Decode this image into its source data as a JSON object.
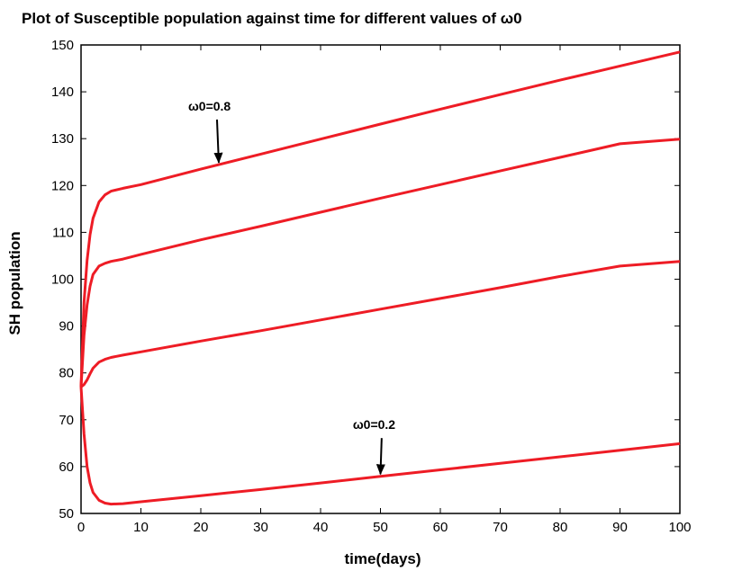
{
  "chart_data": {
    "type": "line",
    "title": "Plot of Susceptible population against time for different values of ω0",
    "xlabel": "time(days)",
    "ylabel": "SH population",
    "xlim": [
      0,
      100
    ],
    "ylim": [
      50,
      150
    ],
    "xticks": [
      0,
      10,
      20,
      30,
      40,
      50,
      60,
      70,
      80,
      90,
      100
    ],
    "yticks": [
      50,
      60,
      70,
      80,
      90,
      100,
      110,
      120,
      130,
      140,
      150
    ],
    "grid": false,
    "color": "#ee1c25",
    "series": [
      {
        "x": [
          0,
          0.5,
          1,
          1.5,
          2,
          3,
          4,
          5,
          7,
          10,
          20,
          30,
          40,
          50,
          60,
          70,
          80,
          90,
          100
        ],
        "values": [
          77,
          95,
          104,
          109.5,
          113,
          116.5,
          118,
          118.8,
          119.4,
          120.2,
          123.5,
          126.7,
          129.9,
          133.1,
          136.3,
          139.4,
          142.5,
          145.5,
          148.5
        ]
      },
      {
        "x": [
          0,
          0.5,
          1,
          1.5,
          2,
          3,
          4,
          5,
          7,
          10,
          20,
          30,
          40,
          50,
          60,
          70,
          80,
          90,
          100
        ],
        "values": [
          77,
          88,
          94.5,
          98.5,
          101,
          102.8,
          103.4,
          103.8,
          104.3,
          105.3,
          108.4,
          111.3,
          114.3,
          117.3,
          120.2,
          123.1,
          126,
          128.9,
          129.9
        ]
      },
      {
        "x": [
          0,
          0.5,
          1,
          1.5,
          2,
          3,
          4,
          5,
          7,
          10,
          20,
          30,
          40,
          50,
          60,
          70,
          80,
          90,
          100
        ],
        "values": [
          77,
          77.5,
          78.5,
          79.8,
          81,
          82.3,
          82.9,
          83.3,
          83.8,
          84.5,
          86.8,
          89,
          91.3,
          93.6,
          95.9,
          98.2,
          100.6,
          102.8,
          103.8
        ]
      },
      {
        "x": [
          0,
          0.5,
          1,
          1.5,
          2,
          3,
          4,
          5,
          7,
          10,
          20,
          30,
          40,
          50,
          60,
          70,
          80,
          90,
          100
        ],
        "values": [
          77,
          67,
          60,
          56.5,
          54.5,
          52.8,
          52.2,
          52,
          52.1,
          52.5,
          53.8,
          55.1,
          56.5,
          57.9,
          59.3,
          60.7,
          62.1,
          63.5,
          64.9
        ]
      }
    ],
    "annotations": [
      {
        "label": "ω0=0.8",
        "x": 23,
        "y": 124.5,
        "text_x": 21.5,
        "text_y": 136
      },
      {
        "label": "ω0=0.2",
        "x": 50,
        "y": 58,
        "text_x": 49,
        "text_y": 68
      }
    ]
  }
}
